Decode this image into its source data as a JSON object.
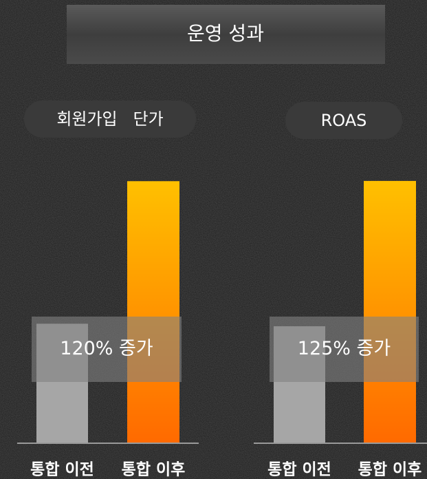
{
  "header": {
    "title": "운영 성과"
  },
  "chart_data": [
    {
      "type": "bar",
      "title": "회원가입   단가",
      "categories": [
        "통합 이전",
        "통합 이후"
      ],
      "values": [
        100,
        220
      ],
      "colors": [
        "#a6a6a6",
        "#ff6a00"
      ],
      "annotation": "120% 증가",
      "ylim": [
        0,
        230
      ]
    },
    {
      "type": "bar",
      "title": "ROAS",
      "categories": [
        "통합 이전",
        "통합 이후"
      ],
      "values": [
        100,
        225
      ],
      "colors": [
        "#a6a6a6",
        "#ff6a00"
      ],
      "annotation": "125% 증가",
      "ylim": [
        0,
        235
      ]
    }
  ]
}
